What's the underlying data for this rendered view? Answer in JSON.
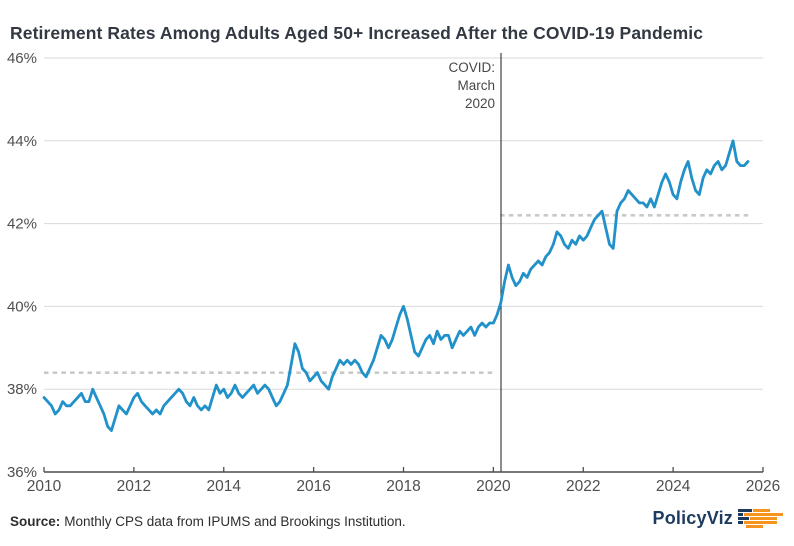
{
  "title": "Retirement Rates Among Adults Aged 50+ Increased After the COVID-19 Pandemic",
  "footer": {
    "source_label": "Source:",
    "source_text": "Monthly CPS data from IPUMS and Brookings Institution.",
    "logo_text": "PolicyViz",
    "logo_icon": "policyviz-bars-icon"
  },
  "colors": {
    "line": "#2191c9",
    "grid": "#dadada",
    "axis": "#4d4d4d",
    "tick_label": "#4f4f4f",
    "dashed_reference": "#c9c9c9",
    "event_line": "#404040",
    "annotation_text": "#474747",
    "title_text": "#323943",
    "logo_navy": "#1c3b5e",
    "logo_orange": "#f6941e"
  },
  "chart_data": {
    "type": "line",
    "title": "Retirement Rates Among Adults Aged 50+ Increased After the COVID-19 Pandemic",
    "xlabel": "",
    "ylabel": "",
    "frequency": "monthly",
    "x_start_year": 2010,
    "x_start_month": 1,
    "xlim": [
      2010,
      2026
    ],
    "ylim": [
      36,
      46
    ],
    "grid": "horizontal",
    "legend": "none",
    "ytick_values": [
      36,
      38,
      40,
      42,
      44,
      46
    ],
    "ytick_labels": [
      "36%",
      "38%",
      "40%",
      "42%",
      "44%",
      "46%"
    ],
    "xtick_values": [
      2010,
      2012,
      2014,
      2016,
      2018,
      2020,
      2022,
      2024,
      2026
    ],
    "xtick_labels": [
      "2010",
      "2012",
      "2014",
      "2016",
      "2018",
      "2020",
      "2022",
      "2024",
      "2026"
    ],
    "event_line_x": 2020.17,
    "annotation": {
      "lines": [
        "COVID:",
        "March",
        "2020"
      ],
      "x": 2020.17
    },
    "reference_lines": [
      {
        "value": 38.4,
        "x_from": 2010.0,
        "x_to": 2020.0
      },
      {
        "value": 42.2,
        "x_from": 2020.15,
        "x_to": 2025.72
      }
    ],
    "values": [
      37.8,
      37.7,
      37.6,
      37.4,
      37.5,
      37.7,
      37.6,
      37.6,
      37.7,
      37.8,
      37.9,
      37.7,
      37.7,
      38.0,
      37.8,
      37.6,
      37.4,
      37.1,
      37.0,
      37.3,
      37.6,
      37.5,
      37.4,
      37.6,
      37.8,
      37.9,
      37.7,
      37.6,
      37.5,
      37.4,
      37.5,
      37.4,
      37.6,
      37.7,
      37.8,
      37.9,
      38.0,
      37.9,
      37.7,
      37.6,
      37.8,
      37.6,
      37.5,
      37.6,
      37.5,
      37.8,
      38.1,
      37.9,
      38.0,
      37.8,
      37.9,
      38.1,
      37.9,
      37.8,
      37.9,
      38.0,
      38.1,
      37.9,
      38.0,
      38.1,
      38.0,
      37.8,
      37.6,
      37.7,
      37.9,
      38.1,
      38.6,
      39.1,
      38.9,
      38.5,
      38.4,
      38.2,
      38.3,
      38.4,
      38.2,
      38.1,
      38.0,
      38.3,
      38.5,
      38.7,
      38.6,
      38.7,
      38.6,
      38.7,
      38.6,
      38.4,
      38.3,
      38.5,
      38.7,
      39.0,
      39.3,
      39.2,
      39.0,
      39.2,
      39.5,
      39.8,
      40.0,
      39.7,
      39.3,
      38.9,
      38.8,
      39.0,
      39.2,
      39.3,
      39.1,
      39.4,
      39.2,
      39.3,
      39.3,
      39.0,
      39.2,
      39.4,
      39.3,
      39.4,
      39.5,
      39.3,
      39.5,
      39.6,
      39.5,
      39.6,
      39.6,
      39.8,
      40.1,
      40.6,
      41.0,
      40.7,
      40.5,
      40.6,
      40.8,
      40.7,
      40.9,
      41.0,
      41.1,
      41.0,
      41.2,
      41.3,
      41.5,
      41.8,
      41.7,
      41.5,
      41.4,
      41.6,
      41.5,
      41.7,
      41.6,
      41.7,
      41.9,
      42.1,
      42.2,
      42.3,
      41.9,
      41.5,
      41.4,
      42.3,
      42.5,
      42.6,
      42.8,
      42.7,
      42.6,
      42.5,
      42.5,
      42.4,
      42.6,
      42.4,
      42.7,
      43.0,
      43.2,
      43.0,
      42.7,
      42.6,
      43.0,
      43.3,
      43.5,
      43.1,
      42.8,
      42.7,
      43.1,
      43.3,
      43.2,
      43.4,
      43.5,
      43.3,
      43.4,
      43.7,
      44.0,
      43.5,
      43.4,
      43.4,
      43.5
    ]
  }
}
